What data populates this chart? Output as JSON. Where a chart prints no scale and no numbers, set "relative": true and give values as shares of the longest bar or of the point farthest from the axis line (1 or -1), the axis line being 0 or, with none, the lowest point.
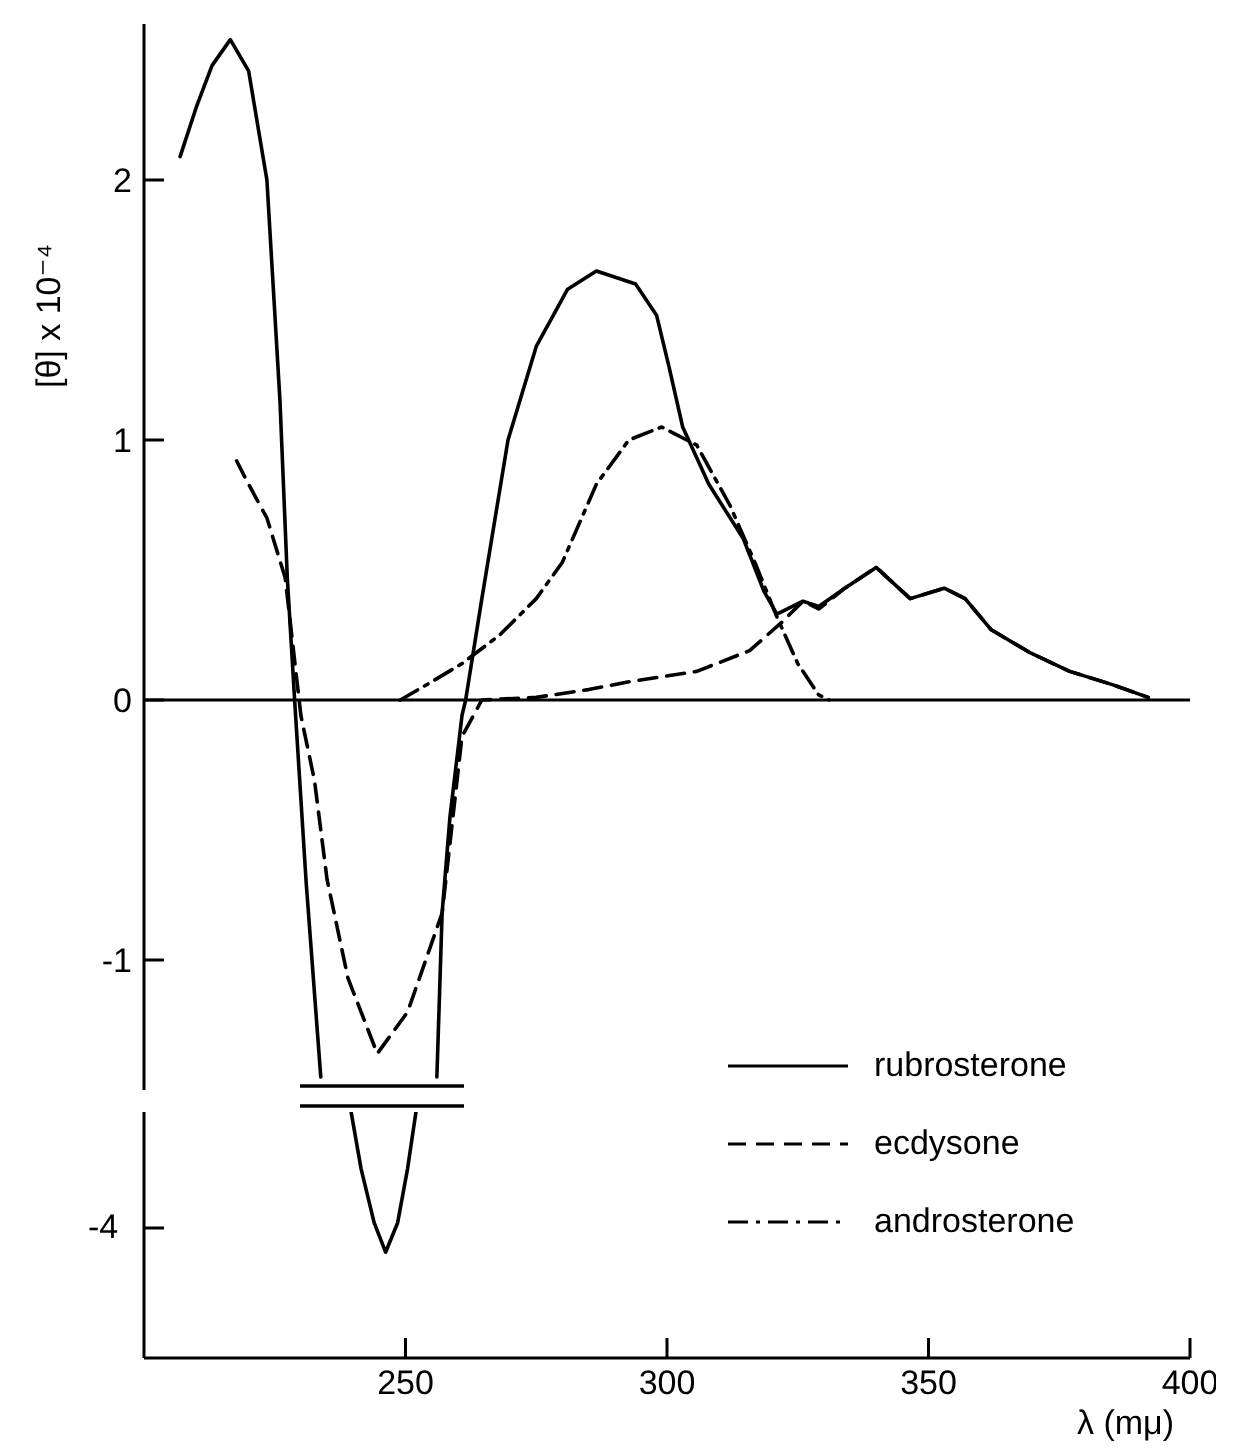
{
  "chart_data": [
    {
      "type": "line",
      "ylabel": "[θ] x 10⁻⁴",
      "xlim": [
        200,
        400
      ],
      "ylim": [
        -1.5,
        2.6
      ],
      "yticks": [
        -1,
        0,
        1,
        2
      ],
      "tick_labels": "y",
      "legend": "bottom right",
      "grid": false,
      "marker": "none",
      "ref_lines": [
        {
          "axis": "y",
          "value": 0,
          "color": "#000000"
        }
      ],
      "series": [
        {
          "name": "rubrosterone",
          "color": "#000000",
          "line_style": "solid",
          "x": [
            206.9,
            210,
            213,
            216.5,
            220,
            223.5,
            226,
            227.4,
            228.8,
            231,
            233.8,
            246.2,
            256,
            257,
            258.5,
            260.8,
            261.5,
            264.6,
            269.6,
            275,
            281,
            286.5,
            294,
            298,
            300.4,
            303,
            308,
            314.6,
            318.5,
            321,
            326,
            329,
            334,
            340,
            346.5,
            353,
            357,
            362,
            369.6,
            377,
            385,
            392
          ],
          "values": [
            2.09,
            2.28,
            2.44,
            2.54,
            2.42,
            2.0,
            1.15,
            0.47,
            0.0,
            -0.7,
            -1.45,
            null,
            -1.45,
            -0.82,
            -0.45,
            -0.06,
            0.0,
            0.39,
            1.0,
            1.36,
            1.58,
            1.65,
            1.6,
            1.48,
            1.28,
            1.05,
            0.83,
            0.62,
            0.42,
            0.33,
            0.38,
            0.36,
            0.43,
            0.51,
            0.39,
            0.43,
            0.39,
            0.27,
            0.18,
            0.11,
            0.06,
            0.01
          ]
        },
        {
          "name": "ecdysone",
          "color": "#000000",
          "line_style": "dashed",
          "x": [
            217.7,
            220,
            223.5,
            227,
            230,
            232.6,
            235,
            239,
            244.6,
            250.4,
            257,
            260.8,
            264.6,
            275,
            285,
            292.7,
            305.7,
            315.8,
            322,
            326,
            329,
            334,
            340,
            346.5,
            353,
            357,
            362,
            369.6,
            377,
            385,
            392
          ],
          "values": [
            0.92,
            0.83,
            0.7,
            0.47,
            -0.06,
            -0.31,
            -0.69,
            -1.07,
            -1.36,
            -1.2,
            -0.82,
            -0.14,
            0.0,
            0.01,
            0.04,
            0.07,
            0.11,
            0.19,
            0.3,
            0.38,
            0.35,
            0.43,
            0.51,
            0.39,
            0.43,
            0.39,
            0.27,
            0.18,
            0.11,
            0.06,
            0.01
          ]
        },
        {
          "name": "androsterone",
          "color": "#000000",
          "line_style": "dashdot",
          "x": [
            249,
            255,
            260.8,
            268,
            275,
            280,
            286.5,
            292.7,
            299,
            305.7,
            312,
            317,
            321,
            325,
            329,
            331
          ],
          "values": [
            0.0,
            0.07,
            0.14,
            0.25,
            0.39,
            0.53,
            0.83,
            1.0,
            1.05,
            0.98,
            0.75,
            0.52,
            0.32,
            0.14,
            0.02,
            0.0
          ]
        }
      ]
    },
    {
      "type": "line",
      "xlabel": "λ (mμ)",
      "xlim": [
        200,
        400
      ],
      "xticks": [
        250,
        300,
        350,
        400
      ],
      "relative": true,
      "annotations": [
        "-4"
      ],
      "grid": false,
      "marker": "none",
      "series": [
        {
          "color": "#000000",
          "line_style": "solid",
          "x": [
            239.6,
            241.5,
            244,
            246.2,
            248.5,
            250.4,
            252
          ],
          "values": [
            1,
            0.77,
            0.55,
            0.43,
            0.55,
            0.77,
            1
          ]
        }
      ]
    }
  ]
}
